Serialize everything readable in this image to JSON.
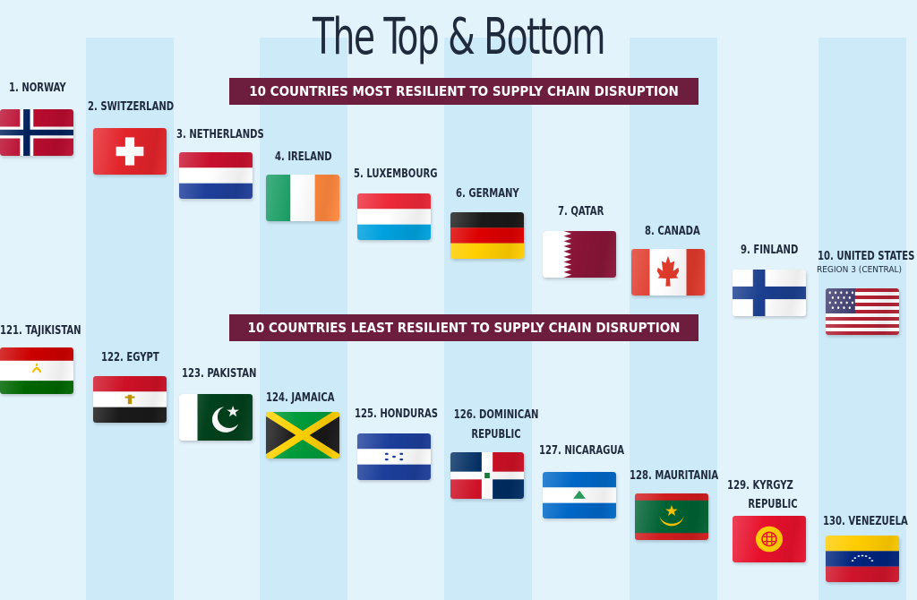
{
  "title": "The Top & Bottom",
  "top_banner": "10 COUNTRIES MOST RESILIENT TO SUPPLY CHAIN DISRUPTION",
  "bottom_banner": "10 COUNTRIES LEAST RESILIENT TO SUPPLY CHAIN DISRUPTION",
  "top": [
    {
      "label": "1. NORWAY",
      "flag": "norway-flag-icon"
    },
    {
      "label": "2. SWITZERLAND",
      "flag": "switzerland-flag-icon"
    },
    {
      "label": "3. NETHERLANDS",
      "flag": "netherlands-flag-icon"
    },
    {
      "label": "4. IRELAND",
      "flag": "ireland-flag-icon"
    },
    {
      "label": "5. LUXEMBOURG",
      "flag": "luxembourg-flag-icon"
    },
    {
      "label": "6. GERMANY",
      "flag": "germany-flag-icon"
    },
    {
      "label": "7. QATAR",
      "flag": "qatar-flag-icon"
    },
    {
      "label": "8. CANADA",
      "flag": "canada-flag-icon"
    },
    {
      "label": "9. FINLAND",
      "flag": "finland-flag-icon"
    },
    {
      "label": "10. UNITED STATES",
      "sub": "REGION 3 (CENTRAL)",
      "flag": "united-states-flag-icon"
    }
  ],
  "bottom": [
    {
      "label": "121. TAJIKISTAN",
      "flag": "tajikistan-flag-icon"
    },
    {
      "label": "122. EGYPT",
      "flag": "egypt-flag-icon"
    },
    {
      "label": "123. PAKISTAN",
      "flag": "pakistan-flag-icon"
    },
    {
      "label": "124. JAMAICA",
      "flag": "jamaica-flag-icon"
    },
    {
      "label": "125. HONDURAS",
      "flag": "honduras-flag-icon"
    },
    {
      "label": "126. DOMINICAN",
      "label2": "REPUBLIC",
      "flag": "dominican-republic-flag-icon"
    },
    {
      "label": "127. NICARAGUA",
      "flag": "nicaragua-flag-icon"
    },
    {
      "label": "128. MAURITANIA",
      "flag": "mauritania-flag-icon"
    },
    {
      "label": "129. KYRGYZ",
      "label2": "REPUBLIC",
      "flag": "kyrgyz-republic-flag-icon"
    },
    {
      "label": "130. VENEZUELA",
      "flag": "venezuela-flag-icon"
    }
  ],
  "colors": {
    "background": "#e3f3fc",
    "stripe": "#cdeaf9",
    "banner": "#6d1e3f",
    "text": "#1f2a3c"
  }
}
